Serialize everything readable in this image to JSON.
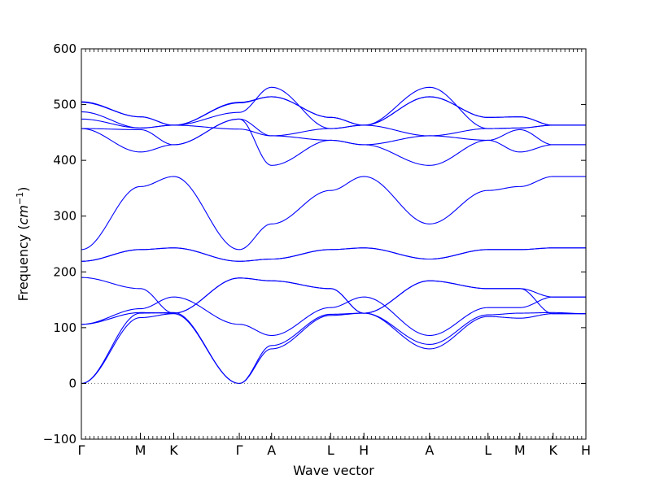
{
  "chart_data": {
    "type": "line",
    "title": "",
    "xlabel": "Wave vector",
    "ylabel": "Frequency",
    "ylabel_unit": "cm",
    "ylabel_unit_exp": "−1",
    "ylim": [
      -100,
      600
    ],
    "yticks": [
      -100,
      0,
      100,
      200,
      300,
      400,
      500,
      600
    ],
    "grid": false,
    "zero_line": true,
    "line_color": "#0000ff",
    "zero_line_color": "#666666",
    "kpoints": [
      {
        "label": "Γ",
        "pos": 0.0
      },
      {
        "label": "M",
        "pos": 0.117
      },
      {
        "label": "K",
        "pos": 0.183
      },
      {
        "label": "Γ",
        "pos": 0.313
      },
      {
        "label": "A",
        "pos": 0.377
      },
      {
        "label": "L",
        "pos": 0.494
      },
      {
        "label": "H",
        "pos": 0.56
      },
      {
        "label": "A",
        "pos": 0.69
      },
      {
        "label": "L",
        "pos": 0.806
      },
      {
        "label": "M",
        "pos": 0.869
      },
      {
        "label": "K",
        "pos": 0.935
      },
      {
        "label": "H",
        "pos": 1.0
      }
    ],
    "series": [
      {
        "values": [
          0,
          118,
          125,
          0,
          62,
          122,
          126,
          62,
          120,
          117,
          125,
          125
        ]
      },
      {
        "values": [
          0,
          126,
          127,
          0,
          68,
          124,
          126,
          70,
          123,
          126,
          127,
          125
        ]
      },
      {
        "values": [
          106,
          134,
          155,
          106,
          86,
          136,
          155,
          86,
          136,
          136,
          155,
          155
        ]
      },
      {
        "values": [
          106,
          127,
          126,
          189,
          184,
          170,
          126,
          184,
          170,
          170,
          125,
          125
        ]
      },
      {
        "values": [
          190,
          170,
          126,
          189,
          184,
          170,
          126,
          184,
          170,
          170,
          155,
          155
        ]
      },
      {
        "values": [
          219,
          240,
          243,
          219,
          223,
          240,
          243,
          223,
          240,
          240,
          243,
          243
        ]
      },
      {
        "values": [
          219,
          240,
          243,
          219,
          223,
          240,
          243,
          223,
          240,
          240,
          243,
          243
        ]
      },
      {
        "values": [
          240,
          353,
          371,
          240,
          286,
          346,
          371,
          286,
          346,
          353,
          371,
          371
        ]
      },
      {
        "values": [
          457,
          415,
          428,
          474,
          391,
          436,
          428,
          391,
          436,
          415,
          428,
          428
        ]
      },
      {
        "values": [
          457,
          455,
          428,
          474,
          444,
          436,
          428,
          444,
          436,
          455,
          428,
          428
        ]
      },
      {
        "values": [
          474,
          458,
          463,
          456,
          444,
          457,
          463,
          444,
          457,
          458,
          463,
          463
        ]
      },
      {
        "values": [
          487,
          458,
          463,
          486,
          531,
          457,
          463,
          531,
          457,
          458,
          463,
          463
        ]
      },
      {
        "values": [
          504,
          478,
          463,
          503,
          514,
          477,
          463,
          514,
          477,
          478,
          463,
          463
        ]
      },
      {
        "values": [
          505,
          478,
          463,
          504,
          514,
          477,
          463,
          514,
          477,
          478,
          463,
          463
        ]
      }
    ]
  }
}
